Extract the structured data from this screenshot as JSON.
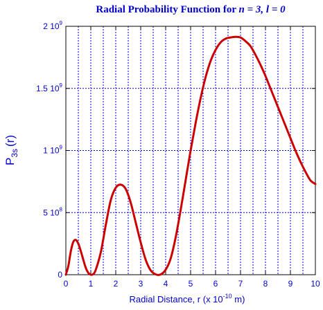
{
  "chart_data": {
    "type": "line",
    "title": {
      "prefix": "Radial Probability Function for ",
      "n_var": "n",
      "n_eq": " = 3, ",
      "l_var": "l",
      "l_eq": " = 0"
    },
    "xlabel": {
      "main": "Radial Distance, r (x 10",
      "exp": "-10",
      "unit": " m)"
    },
    "ylabel": {
      "p": "P",
      "sub": "3s",
      "arg": "(r)"
    },
    "xlim": [
      0,
      10
    ],
    "ylim": [
      0,
      2000000000
    ],
    "grid": true,
    "x_ticks": [
      "0",
      "1",
      "2",
      "3",
      "4",
      "5",
      "6",
      "7",
      "8",
      "9",
      "10"
    ],
    "y_ticks": [
      {
        "value": 0,
        "label": "0",
        "mant": "0",
        "exp": ""
      },
      {
        "value": 500000000,
        "label": "5 10^8",
        "mant": "5 10",
        "exp": "8"
      },
      {
        "value": 1000000000,
        "label": "1 10^9",
        "mant": "1 10",
        "exp": "9"
      },
      {
        "value": 1500000000,
        "label": "1.5 10^9",
        "mant": "1.5 10",
        "exp": "9"
      },
      {
        "value": 2000000000,
        "label": "2 10^9",
        "mant": "2 10",
        "exp": "9"
      }
    ],
    "series": [
      {
        "x": [
          0,
          0.1,
          0.2,
          0.3,
          0.4,
          0.5,
          0.6,
          0.7,
          0.8,
          0.9,
          1.0,
          1.1,
          1.2,
          1.4,
          1.6,
          1.8,
          2.0,
          2.2,
          2.4,
          2.6,
          2.8,
          3.0,
          3.2,
          3.4,
          3.6,
          3.8,
          4.0,
          4.2,
          4.4,
          4.6,
          4.8,
          5.0,
          5.2,
          5.4,
          5.6,
          5.8,
          6.0,
          6.2,
          6.4,
          6.6,
          6.8,
          7.0,
          7.2,
          7.4,
          7.6,
          7.8,
          8.0,
          8.2,
          8.4,
          8.6,
          8.8,
          9.0,
          9.2,
          9.4,
          9.6,
          9.8,
          10.0
        ],
        "y": [
          0,
          70000000,
          190000000,
          265000000,
          280000000,
          250000000,
          190000000,
          120000000,
          55000000,
          15000000,
          0,
          5000000,
          40000000,
          180000000,
          400000000,
          600000000,
          700000000,
          725000000,
          690000000,
          580000000,
          420000000,
          260000000,
          120000000,
          35000000,
          3000000,
          2000000,
          40000000,
          130000000,
          300000000,
          520000000,
          760000000,
          1000000000,
          1220000000,
          1420000000,
          1590000000,
          1720000000,
          1810000000,
          1870000000,
          1900000000,
          1910000000,
          1915000000,
          1910000000,
          1880000000,
          1840000000,
          1770000000,
          1690000000,
          1600000000,
          1500000000,
          1400000000,
          1300000000,
          1200000000,
          1100000000,
          1000000000,
          910000000,
          830000000,
          760000000,
          730000000
        ],
        "color": "#cc0000"
      }
    ],
    "colors": {
      "text": "#0000cc",
      "frame": "#000000",
      "grid": "#0000cc",
      "curve": "#cc0000",
      "background": "#ffffff"
    }
  }
}
